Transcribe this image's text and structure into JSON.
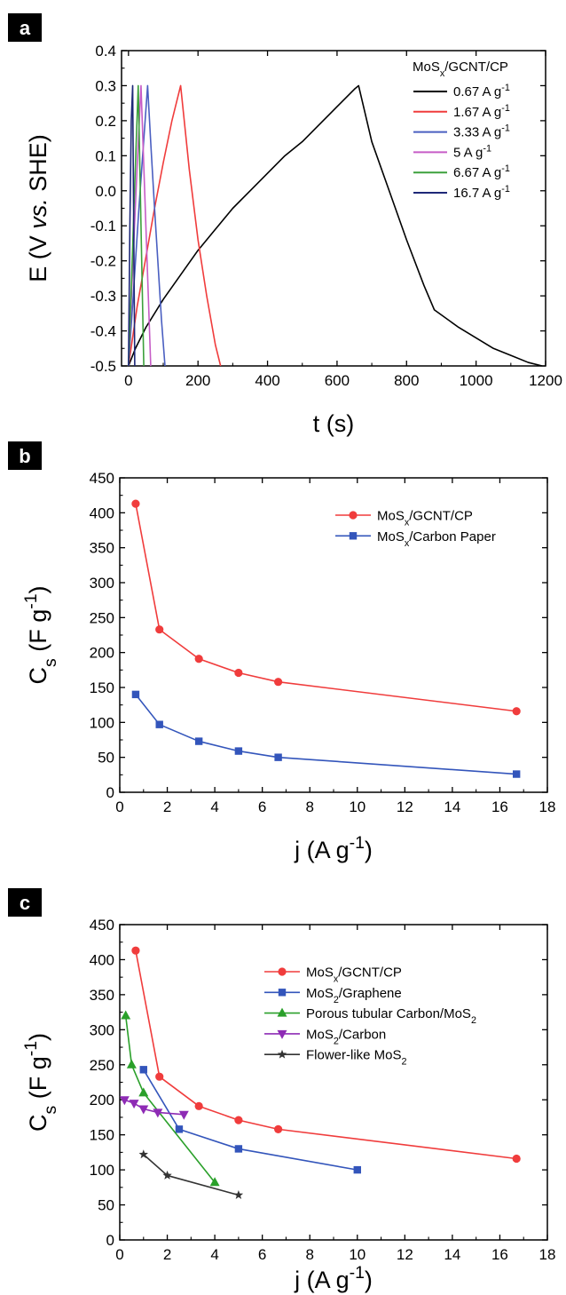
{
  "chart_data": [
    {
      "panel": "a",
      "type": "line",
      "xlabel": "t (s)",
      "ylabel_parts": [
        "E (V ",
        "vs.",
        " SHE)"
      ],
      "xlim": [
        -20,
        1200
      ],
      "ylim": [
        -0.5,
        0.4
      ],
      "xticks": [
        0,
        200,
        400,
        600,
        800,
        1000,
        1200
      ],
      "yticks": [
        -0.5,
        -0.4,
        -0.3,
        -0.2,
        -0.1,
        0.0,
        0.1,
        0.2,
        0.3,
        0.4
      ],
      "ytick_decimals": 1,
      "legend_title": {
        "base": "MoS",
        "sub": "x",
        "rest": "/GCNT/CP"
      },
      "legend_placement": "top-right",
      "series": [
        {
          "name": "0.67 A g",
          "sup": "-1",
          "color": "#000000",
          "x": [
            0,
            20,
            50,
            100,
            150,
            200,
            250,
            300,
            350,
            400,
            450,
            500,
            550,
            600,
            650,
            662,
            700,
            750,
            800,
            850,
            880,
            950,
            1000,
            1050,
            1100,
            1150,
            1190
          ],
          "y": [
            -0.5,
            -0.45,
            -0.39,
            -0.31,
            -0.24,
            -0.17,
            -0.11,
            -0.05,
            0.0,
            0.05,
            0.1,
            0.14,
            0.19,
            0.24,
            0.29,
            0.3,
            0.14,
            0.0,
            -0.14,
            -0.27,
            -0.34,
            -0.39,
            -0.42,
            -0.45,
            -0.47,
            -0.49,
            -0.5
          ]
        },
        {
          "name": "1.67 A g",
          "sup": "-1",
          "color": "#f03c3c",
          "x": [
            0,
            25,
            50,
            75,
            100,
            125,
            150,
            175,
            200,
            225,
            250,
            265
          ],
          "y": [
            -0.5,
            -0.33,
            -0.19,
            -0.05,
            0.08,
            0.2,
            0.3,
            0.06,
            -0.14,
            -0.3,
            -0.44,
            -0.5
          ]
        },
        {
          "name": "3.33 A g",
          "sup": "-1",
          "color": "#4a5fc1",
          "x": [
            0,
            15,
            30,
            45,
            55,
            65,
            75,
            85,
            95,
            105
          ],
          "y": [
            -0.5,
            -0.28,
            -0.05,
            0.16,
            0.3,
            0.12,
            -0.05,
            -0.21,
            -0.37,
            -0.5
          ]
        },
        {
          "name": "5 A g",
          "sup": "-1",
          "color": "#c65cc6",
          "x": [
            0,
            12,
            24,
            36,
            43,
            50,
            57,
            64
          ],
          "y": [
            -0.5,
            -0.22,
            0.05,
            0.3,
            0.1,
            -0.1,
            -0.3,
            -0.5
          ]
        },
        {
          "name": "6.67 A g",
          "sup": "-1",
          "color": "#3ca03c",
          "x": [
            0,
            9,
            18,
            28,
            33,
            38,
            44
          ],
          "y": [
            -0.5,
            -0.25,
            0.02,
            0.3,
            0.05,
            -0.2,
            -0.5
          ]
        },
        {
          "name": "16.7 A g",
          "sup": "-1",
          "color": "#1e2878",
          "x": [
            0,
            4,
            8,
            12,
            15,
            18
          ],
          "y": [
            -0.5,
            -0.1,
            0.2,
            0.3,
            -0.1,
            -0.5
          ]
        }
      ]
    },
    {
      "panel": "b",
      "type": "line",
      "xlabel": {
        "base": "j (A g",
        "sup": "-1",
        "rest": ")"
      },
      "ylabel": {
        "base": "C",
        "sub": "s",
        "mid": " (F g",
        "sup": "-1",
        "rest": ")"
      },
      "xlim": [
        0,
        18
      ],
      "ylim": [
        0,
        450
      ],
      "xticks": [
        0,
        2,
        4,
        6,
        8,
        10,
        12,
        14,
        16,
        18
      ],
      "yticks": [
        0,
        50,
        100,
        150,
        200,
        250,
        300,
        350,
        400,
        450
      ],
      "ytick_decimals": 0,
      "legend_placement": "top-right",
      "series": [
        {
          "name_base": "MoS",
          "name_sub": "x",
          "name_rest": "/GCNT/CP",
          "color": "#f03c3c",
          "marker": "circle",
          "x": [
            0.67,
            1.67,
            3.33,
            5,
            6.67,
            16.7
          ],
          "y": [
            413,
            233,
            191,
            171,
            158,
            116
          ]
        },
        {
          "name_base": "MoS",
          "name_sub": "x",
          "name_rest": "/Carbon Paper",
          "color": "#3355bb",
          "marker": "square",
          "x": [
            0.67,
            1.67,
            3.33,
            5,
            6.67,
            16.7
          ],
          "y": [
            140,
            97,
            73,
            59,
            50,
            26
          ]
        }
      ]
    },
    {
      "panel": "c",
      "type": "line",
      "xlabel": {
        "base": "j (A g",
        "sup": "-1",
        "rest": ")"
      },
      "ylabel": {
        "base": "C",
        "sub": "s",
        "mid": " (F g",
        "sup": "-1",
        "rest": ")"
      },
      "xlim": [
        0,
        18
      ],
      "ylim": [
        0,
        450
      ],
      "xticks": [
        0,
        2,
        4,
        6,
        8,
        10,
        12,
        14,
        16,
        18
      ],
      "yticks": [
        0,
        50,
        100,
        150,
        200,
        250,
        300,
        350,
        400,
        450
      ],
      "ytick_decimals": 0,
      "legend_placement": "top-right",
      "series": [
        {
          "name_base": "MoS",
          "name_sub": "x",
          "name_rest": "/GCNT/CP",
          "color": "#f03c3c",
          "marker": "circle",
          "x": [
            0.67,
            1.67,
            3.33,
            5,
            6.67,
            16.7
          ],
          "y": [
            413,
            233,
            191,
            171,
            158,
            116
          ]
        },
        {
          "name_base": "MoS",
          "name_sub": "2",
          "name_rest": "/Graphene",
          "color": "#3355bb",
          "marker": "square",
          "x": [
            1,
            2.5,
            5,
            10
          ],
          "y": [
            243,
            158,
            130,
            100
          ]
        },
        {
          "name_base": "Porous tubular Carbon/MoS",
          "name_sub": "2",
          "name_rest": "",
          "color": "#2aa02a",
          "marker": "triangle-up",
          "x": [
            0.25,
            0.5,
            1,
            4
          ],
          "y": [
            320,
            250,
            210,
            82
          ]
        },
        {
          "name_base": "MoS",
          "name_sub": "2",
          "name_rest": "/Carbon",
          "color": "#8e2bb5",
          "marker": "triangle-down",
          "x": [
            0.2,
            0.6,
            1,
            1.6,
            2.7
          ],
          "y": [
            200,
            195,
            187,
            182,
            179
          ]
        },
        {
          "name_base": "Flower-like MoS",
          "name_sub": "2",
          "name_rest": "",
          "color": "#333333",
          "marker": "star",
          "x": [
            1,
            2,
            5
          ],
          "y": [
            122,
            92,
            64
          ]
        }
      ]
    }
  ]
}
